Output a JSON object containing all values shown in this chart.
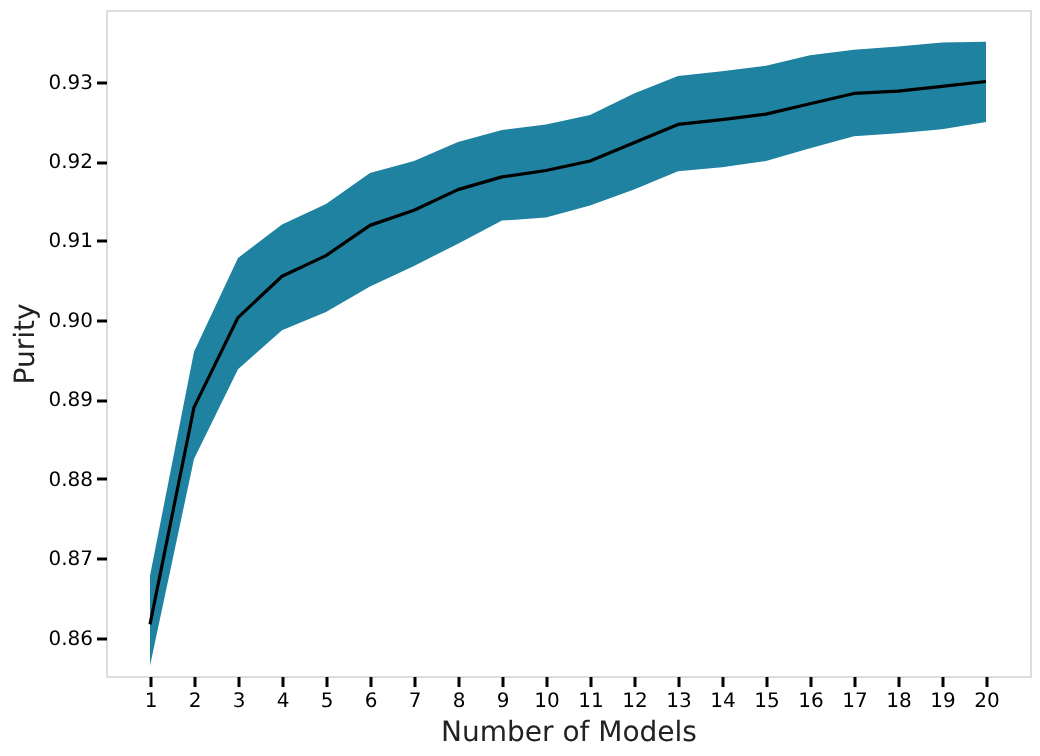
{
  "chart_data": {
    "type": "line",
    "xlabel": "Number of Models",
    "ylabel": "Purity",
    "x": [
      1,
      2,
      3,
      4,
      5,
      6,
      7,
      8,
      9,
      10,
      11,
      12,
      13,
      14,
      15,
      16,
      17,
      18,
      19,
      20
    ],
    "series": [
      {
        "color": "#000000",
        "values": [
          0.8617,
          0.889,
          0.9003,
          0.9055,
          0.9081,
          0.9119,
          0.9138,
          0.9164,
          0.918,
          0.9188,
          0.92,
          0.9223,
          0.9246,
          0.9252,
          0.9259,
          0.9272,
          0.9285,
          0.9288,
          0.9294,
          0.93
        ],
        "lower": [
          0.8565,
          0.8825,
          0.8938,
          0.8987,
          0.901,
          0.9042,
          0.9068,
          0.9096,
          0.9125,
          0.9129,
          0.9144,
          0.9164,
          0.9187,
          0.9192,
          0.92,
          0.9216,
          0.9231,
          0.9235,
          0.924,
          0.9249
        ],
        "upper": [
          0.8678,
          0.896,
          0.9078,
          0.912,
          0.9146,
          0.9185,
          0.92,
          0.9224,
          0.9239,
          0.9246,
          0.9258,
          0.9285,
          0.9307,
          0.9313,
          0.932,
          0.9333,
          0.934,
          0.9344,
          0.9349,
          0.935
        ]
      }
    ],
    "xlim": [
      0,
      21
    ],
    "xticks": [
      1,
      2,
      3,
      4,
      5,
      6,
      7,
      8,
      9,
      10,
      11,
      12,
      13,
      14,
      15,
      16,
      17,
      18,
      19,
      20
    ],
    "ylim": [
      0.8552,
      0.939
    ],
    "yticks": [
      0.86,
      0.87,
      0.88,
      0.89,
      {
        "value": 0.9,
        "label": "0.90"
      },
      0.91,
      0.92,
      0.93
    ],
    "grid": false,
    "marker": "none",
    "line_style": "solid"
  }
}
